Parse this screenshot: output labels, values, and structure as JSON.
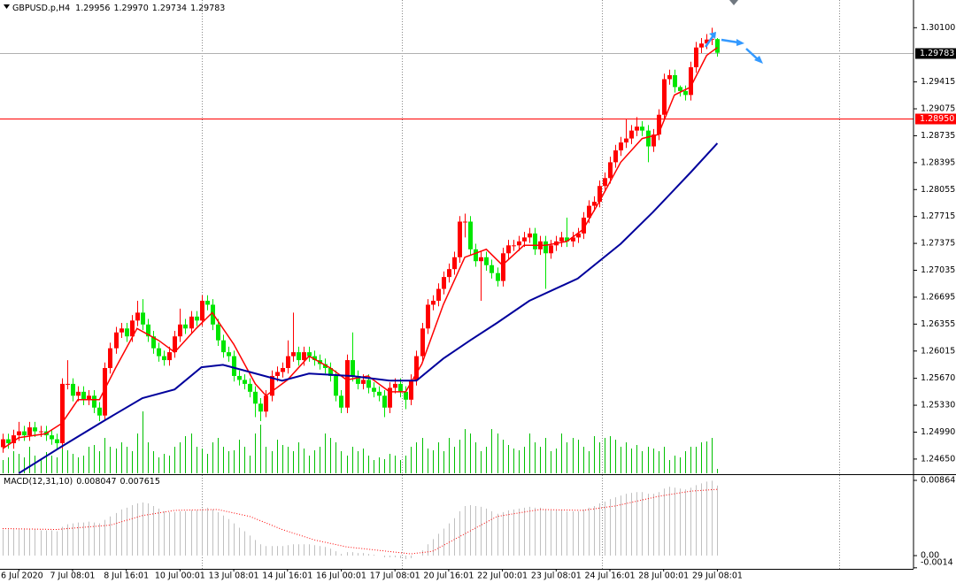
{
  "chart_data": {
    "type": "candlestick",
    "title": "GBPUSD.p,H4",
    "ohlc_labels": [
      "1.29956",
      "1.29970",
      "1.29734",
      "1.29783"
    ],
    "bull_color": "#ff0000",
    "bear_color": "#00e600",
    "open": [
      1.248,
      1.249,
      1.2485,
      1.2495,
      1.25,
      1.2495,
      1.2505,
      1.25,
      1.25,
      1.2495,
      1.249,
      1.2485,
      1.256,
      1.256,
      1.2545,
      1.255,
      1.254,
      1.2545,
      1.253,
      1.252,
      1.258,
      1.2605,
      1.2625,
      1.263,
      1.262,
      1.264,
      1.265,
      1.2635,
      1.262,
      1.2605,
      1.2595,
      1.259,
      1.26,
      1.262,
      1.2635,
      1.263,
      1.2645,
      1.264,
      1.2665,
      1.266,
      1.2635,
      1.2615,
      1.26,
      1.2595,
      1.257,
      1.2565,
      1.256,
      1.255,
      1.2535,
      1.2525,
      1.2545,
      1.257,
      1.2575,
      1.258,
      1.2595,
      1.26,
      1.259,
      1.26,
      1.2595,
      1.259,
      1.2585,
      1.258,
      1.257,
      1.2545,
      1.253,
      1.259,
      1.257,
      1.256,
      1.2565,
      1.2555,
      1.255,
      1.2545,
      1.253,
      1.2555,
      1.256,
      1.255,
      1.254,
      1.2565,
      1.2595,
      1.263,
      1.266,
      1.2665,
      1.268,
      1.2695,
      1.2705,
      1.272,
      1.2765,
      1.2765,
      1.273,
      1.2715,
      1.272,
      1.271,
      1.27,
      1.269,
      1.2725,
      1.2735,
      1.2735,
      1.274,
      1.2745,
      1.275,
      1.273,
      1.274,
      1.2725,
      1.2735,
      1.274,
      1.2745,
      1.274,
      1.2745,
      1.275,
      1.277,
      1.2785,
      1.279,
      1.281,
      1.282,
      1.284,
      1.2855,
      1.2865,
      1.287,
      1.288,
      1.2885,
      1.288,
      1.286,
      1.2875,
      1.29,
      1.2945,
      1.295,
      1.2935,
      1.293,
      1.2925,
      1.296,
      1.2985,
      1.299,
      1.2995,
      1.29956
    ],
    "high": [
      1.2497,
      1.2497,
      1.2502,
      1.2512,
      1.2507,
      1.2512,
      1.2512,
      1.2507,
      1.2507,
      1.2502,
      1.2497,
      1.2567,
      1.259,
      1.2567,
      1.2557,
      1.2557,
      1.2552,
      1.2552,
      1.2537,
      1.2587,
      1.2612,
      1.2632,
      1.2637,
      1.2637,
      1.2647,
      1.2665,
      1.2667,
      1.2642,
      1.2627,
      1.2612,
      1.2602,
      1.2607,
      1.2627,
      1.2655,
      1.2642,
      1.2652,
      1.2652,
      1.2672,
      1.2672,
      1.2667,
      1.2642,
      1.2622,
      1.2607,
      1.2602,
      1.2577,
      1.2572,
      1.2567,
      1.2557,
      1.2542,
      1.2552,
      1.2577,
      1.2582,
      1.2587,
      1.2615,
      1.265,
      1.2607,
      1.2607,
      1.2607,
      1.2602,
      1.2597,
      1.2592,
      1.2587,
      1.2577,
      1.2552,
      1.2597,
      1.2625,
      1.2577,
      1.2572,
      1.2572,
      1.2562,
      1.2557,
      1.2552,
      1.2562,
      1.2567,
      1.2567,
      1.2557,
      1.2572,
      1.2602,
      1.2637,
      1.2667,
      1.2672,
      1.2687,
      1.2702,
      1.2712,
      1.2727,
      1.2772,
      1.2775,
      1.2772,
      1.2737,
      1.2727,
      1.2727,
      1.2717,
      1.2707,
      1.2732,
      1.2742,
      1.2742,
      1.2747,
      1.2752,
      1.2757,
      1.2757,
      1.2747,
      1.2747,
      1.2742,
      1.2747,
      1.2752,
      1.277,
      1.2752,
      1.2757,
      1.2777,
      1.2792,
      1.2797,
      1.2817,
      1.2827,
      1.2847,
      1.2862,
      1.2872,
      1.2895,
      1.2887,
      1.2897,
      1.2892,
      1.2887,
      1.2882,
      1.2907,
      1.2952,
      1.2957,
      1.2957,
      1.2937,
      1.2937,
      1.2967,
      1.2992,
      1.2997,
      1.3002,
      1.301,
      1.2997
    ],
    "low": [
      1.2473,
      1.2478,
      1.2478,
      1.2488,
      1.2488,
      1.2488,
      1.2493,
      1.2493,
      1.2488,
      1.2483,
      1.2478,
      1.2478,
      1.2553,
      1.2538,
      1.2538,
      1.2533,
      1.2533,
      1.2523,
      1.2513,
      1.2513,
      1.2573,
      1.2598,
      1.2618,
      1.2613,
      1.2613,
      1.2633,
      1.2628,
      1.2613,
      1.2598,
      1.2588,
      1.2583,
      1.2583,
      1.2593,
      1.2613,
      1.2623,
      1.2623,
      1.2633,
      1.2633,
      1.2653,
      1.2628,
      1.2608,
      1.2593,
      1.2588,
      1.2563,
      1.2558,
      1.2553,
      1.2543,
      1.2518,
      1.2513,
      1.2518,
      1.2538,
      1.2563,
      1.2568,
      1.2573,
      1.2588,
      1.2583,
      1.2583,
      1.2588,
      1.2583,
      1.2578,
      1.2573,
      1.2563,
      1.2538,
      1.2523,
      1.2523,
      1.2563,
      1.2553,
      1.2553,
      1.2548,
      1.2543,
      1.2538,
      1.2518,
      1.2523,
      1.2548,
      1.2543,
      1.2528,
      1.2533,
      1.2558,
      1.2588,
      1.2623,
      1.2653,
      1.2658,
      1.2673,
      1.2688,
      1.2698,
      1.2713,
      1.2745,
      1.2723,
      1.2708,
      1.2665,
      1.2703,
      1.2693,
      1.2683,
      1.2683,
      1.2718,
      1.2728,
      1.2728,
      1.2733,
      1.2738,
      1.2723,
      1.2723,
      1.268,
      1.2718,
      1.2728,
      1.2733,
      1.2733,
      1.2733,
      1.2738,
      1.2743,
      1.2763,
      1.2778,
      1.2783,
      1.2803,
      1.2813,
      1.2833,
      1.2848,
      1.2858,
      1.2863,
      1.2873,
      1.2873,
      1.284,
      1.2853,
      1.2868,
      1.2893,
      1.2938,
      1.2928,
      1.2923,
      1.2918,
      1.2918,
      1.2953,
      1.2978,
      1.2983,
      1.2988,
      1.29734
    ],
    "close": [
      1.249,
      1.2485,
      1.2495,
      1.25,
      1.2495,
      1.2505,
      1.25,
      1.25,
      1.2495,
      1.249,
      1.2485,
      1.256,
      1.256,
      1.2545,
      1.255,
      1.254,
      1.2545,
      1.253,
      1.252,
      1.258,
      1.2605,
      1.2625,
      1.263,
      1.262,
      1.264,
      1.265,
      1.2635,
      1.262,
      1.2605,
      1.2595,
      1.259,
      1.26,
      1.262,
      1.2635,
      1.263,
      1.2645,
      1.264,
      1.2665,
      1.266,
      1.2635,
      1.2615,
      1.26,
      1.2595,
      1.257,
      1.2565,
      1.256,
      1.255,
      1.2535,
      1.2525,
      1.2545,
      1.257,
      1.2575,
      1.258,
      1.2595,
      1.26,
      1.259,
      1.26,
      1.2595,
      1.259,
      1.2585,
      1.258,
      1.257,
      1.2545,
      1.253,
      1.259,
      1.257,
      1.256,
      1.2565,
      1.2555,
      1.255,
      1.2545,
      1.253,
      1.2555,
      1.256,
      1.255,
      1.254,
      1.2565,
      1.2595,
      1.263,
      1.266,
      1.2665,
      1.268,
      1.2695,
      1.2705,
      1.272,
      1.2765,
      1.2765,
      1.273,
      1.2715,
      1.272,
      1.271,
      1.27,
      1.269,
      1.2725,
      1.2735,
      1.2735,
      1.274,
      1.2745,
      1.275,
      1.273,
      1.274,
      1.2725,
      1.2735,
      1.274,
      1.2745,
      1.274,
      1.2745,
      1.275,
      1.277,
      1.2785,
      1.279,
      1.281,
      1.282,
      1.284,
      1.2855,
      1.2865,
      1.287,
      1.288,
      1.2885,
      1.288,
      1.286,
      1.2875,
      1.29,
      1.2945,
      1.295,
      1.2935,
      1.293,
      1.2925,
      1.296,
      1.2985,
      1.299,
      1.2995,
      1.2996,
      1.29783
    ],
    "lines": [
      {
        "color": "#ff0000",
        "x": [
          0,
          3,
          8,
          11,
          14,
          18,
          21,
          25,
          29,
          32,
          36,
          39,
          43,
          47,
          49,
          53,
          57,
          61,
          64,
          68,
          72,
          75,
          78,
          82,
          86,
          90,
          93,
          97,
          101,
          105,
          108,
          111,
          115,
          119,
          122,
          125,
          128,
          131,
          133
        ],
        "values": [
          1.2478,
          1.2492,
          1.2497,
          1.251,
          1.254,
          1.254,
          1.258,
          1.263,
          1.2615,
          1.26,
          1.263,
          1.265,
          1.261,
          1.256,
          1.2545,
          1.2565,
          1.2595,
          1.258,
          1.2565,
          1.257,
          1.255,
          1.255,
          1.2585,
          1.266,
          1.272,
          1.273,
          1.271,
          1.2735,
          1.2735,
          1.274,
          1.2755,
          1.279,
          1.284,
          1.287,
          1.2875,
          1.2925,
          1.2935,
          1.2975,
          1.2985
        ]
      },
      {
        "color": "#00009c",
        "x": [
          3,
          11,
          19,
          26,
          32,
          37,
          41,
          46,
          52,
          57,
          65,
          72,
          77,
          82,
          87,
          92,
          98,
          107,
          115,
          121,
          128,
          133
        ],
        "values": [
          1.2447,
          1.2481,
          1.2514,
          1.2542,
          1.2553,
          1.2581,
          1.2584,
          1.2575,
          1.2564,
          1.2573,
          1.257,
          1.2564,
          1.2564,
          1.2592,
          1.2615,
          1.2637,
          1.2665,
          1.2693,
          1.2737,
          1.2777,
          1.2827,
          1.2864
        ]
      }
    ],
    "volume": {
      "color": "#00c000",
      "lim": [
        0,
        10000
      ],
      "values": [
        1500,
        1800,
        2500,
        2200,
        1800,
        3000,
        2000,
        1600,
        2400,
        2000,
        1800,
        3500,
        2600,
        2200,
        1800,
        2000,
        3000,
        3200,
        2500,
        4000,
        3000,
        2800,
        3500,
        3000,
        2500,
        4500,
        7000,
        3500,
        2500,
        1800,
        2200,
        2000,
        3000,
        3500,
        4200,
        4500,
        3000,
        2800,
        2200,
        3500,
        4000,
        3000,
        2500,
        2600,
        3800,
        3000,
        2000,
        4500,
        5500,
        3000,
        2500,
        3800,
        3200,
        3000,
        2500,
        3500,
        2800,
        2000,
        2600,
        3000,
        4500,
        4000,
        3500,
        2500,
        2000,
        3000,
        2500,
        2800,
        2000,
        1500,
        1800,
        1600,
        2200,
        2000,
        1500,
        2000,
        3000,
        3500,
        4000,
        2800,
        2600,
        3500,
        2500,
        4000,
        3000,
        3800,
        5000,
        4500,
        3500,
        2500,
        3000,
        5000,
        4500,
        3800,
        3200,
        2800,
        2600,
        3000,
        4500,
        3500,
        3000,
        4000,
        2500,
        2800,
        4500,
        3500,
        4000,
        3800,
        3000,
        2500,
        4200,
        3500,
        4000,
        4200,
        3800,
        3000,
        3500,
        2800,
        3200,
        2500,
        3000,
        2800,
        2500,
        3000,
        1500,
        2000,
        1800,
        2500,
        3000,
        3000,
        3500,
        3600,
        4000,
        500
      ]
    },
    "xlim": [
      -0.5,
      169.5
    ],
    "xticks": [
      {
        "value": 3,
        "label": "6 Jul 2020"
      },
      {
        "value": 13,
        "label": "7 Jul 08:01"
      },
      {
        "value": 23,
        "label": "8 Jul 16:01"
      },
      {
        "value": 33,
        "label": "10 Jul 00:01"
      },
      {
        "value": 43,
        "label": "13 Jul 08:01"
      },
      {
        "value": 53,
        "label": "14 Jul 16:01"
      },
      {
        "value": 63,
        "label": "16 Jul 00:01"
      },
      {
        "value": 73,
        "label": "17 Jul 08:01"
      },
      {
        "value": 83,
        "label": "20 Jul 16:01"
      },
      {
        "value": 93,
        "label": "22 Jul 00:01"
      },
      {
        "value": 103,
        "label": "23 Jul 08:01"
      },
      {
        "value": 113,
        "label": "24 Jul 16:01"
      },
      {
        "value": 123,
        "label": "28 Jul 00:01"
      },
      {
        "value": 133,
        "label": "29 Jul 08:01"
      }
    ],
    "xgrid": [
      37,
      74.3,
      111.5,
      155.7
    ],
    "ylim": [
      1.2447,
      1.3045
    ],
    "yticks": [
      {
        "value": 1.301,
        "label": "1.30100"
      },
      1.29415,
      1.29075,
      1.28735,
      1.28395,
      1.28055,
      1.27715,
      1.27375,
      1.27035,
      1.26695,
      1.26355,
      1.26015,
      {
        "value": 1.2567,
        "label": "1.25670"
      },
      {
        "value": 1.2533,
        "label": "1.25330"
      },
      {
        "value": 1.2499,
        "label": "1.24990"
      },
      {
        "value": 1.2465,
        "label": "1.24650"
      }
    ],
    "hline": {
      "value": 1.2895,
      "label": "1.28950",
      "color": "#ff0000"
    },
    "macd": {
      "title": "MACD(12,31,10)",
      "color": "#c0c0c0",
      "values": [
        0.003,
        0.003,
        0.003,
        0.003,
        0.0031,
        0.003,
        0.003,
        0.0029,
        0.0029,
        0.0029,
        0.0028,
        0.0033,
        0.0036,
        0.0037,
        0.0038,
        0.0038,
        0.0039,
        0.0038,
        0.0037,
        0.0041,
        0.0045,
        0.0049,
        0.0053,
        0.0055,
        0.0058,
        0.006,
        0.0061,
        0.006,
        0.0057,
        0.0054,
        0.0051,
        0.005,
        0.005,
        0.0051,
        0.0051,
        0.0052,
        0.0052,
        0.0054,
        0.0055,
        0.0053,
        0.005,
        0.0046,
        0.0042,
        0.0037,
        0.0032,
        0.0028,
        0.0023,
        0.0018,
        0.0013,
        0.0011,
        0.0011,
        0.0011,
        0.0011,
        0.0012,
        0.0013,
        0.0013,
        0.0013,
        0.0013,
        0.0012,
        0.0011,
        0.001,
        0.0008,
        0.0005,
        0.0002,
        0.0004,
        0.0004,
        0.0003,
        0.0003,
        0.0002,
        0.0001,
        0.0,
        -0.0002,
        -0.0002,
        -0.0002,
        -0.0003,
        -0.0004,
        -0.0003,
        0.0,
        0.0006,
        0.0013,
        0.0019,
        0.0025,
        0.0031,
        0.0037,
        0.0043,
        0.0051,
        0.0057,
        0.0058,
        0.0057,
        0.0056,
        0.0054,
        0.0051,
        0.0048,
        0.005,
        0.0052,
        0.0053,
        0.0054,
        0.0055,
        0.0056,
        0.0055,
        0.0055,
        0.0053,
        0.0052,
        0.0052,
        0.0052,
        0.0051,
        0.0051,
        0.0051,
        0.0053,
        0.0055,
        0.0057,
        0.006,
        0.0062,
        0.0065,
        0.0067,
        0.0069,
        0.0071,
        0.0072,
        0.0073,
        0.0073,
        0.0071,
        0.0071,
        0.0073,
        0.0077,
        0.0079,
        0.0078,
        0.0077,
        0.0076,
        0.0078,
        0.0081,
        0.0083,
        0.0085,
        0.0086,
        0.008047
      ],
      "signal": {
        "color": "#ff0000",
        "x": [
          0,
          10,
          20,
          26,
          32,
          40,
          46,
          52,
          58,
          64,
          70,
          76,
          80,
          86,
          92,
          100,
          108,
          114,
          122,
          128,
          133
        ],
        "values": [
          0.0031,
          0.003,
          0.0035,
          0.0046,
          0.0052,
          0.0053,
          0.0045,
          0.003,
          0.0018,
          0.001,
          0.0006,
          0.0002,
          0.0005,
          0.0025,
          0.0045,
          0.0053,
          0.0052,
          0.0057,
          0.0068,
          0.0074,
          0.007615
        ]
      },
      "ylim": [
        -0.00152,
        0.00925
      ],
      "yticks": [
        0.00864,
        {
          "value": 0,
          "label": "0.00"
        },
        -0.0014
      ]
    }
  }
}
